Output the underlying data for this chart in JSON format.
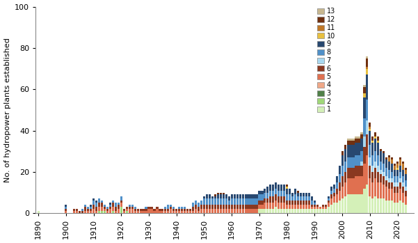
{
  "ylabel": "No. of hydropower plants established",
  "ylim": [
    0,
    100
  ],
  "yticks": [
    0,
    20,
    40,
    60,
    80,
    100
  ],
  "xlim": [
    1889,
    2026
  ],
  "xticks": [
    1890,
    1900,
    1910,
    1920,
    1930,
    1940,
    1950,
    1960,
    1970,
    1980,
    1990,
    2000,
    2010,
    2020
  ],
  "colors": {
    "1": "#d4f0b8",
    "2": "#a0d878",
    "3": "#508048",
    "4": "#f0a888",
    "5": "#e07050",
    "6": "#8a3820",
    "7": "#a8d8f0",
    "8": "#5090c8",
    "9": "#284870",
    "10": "#e8c040",
    "11": "#c07828",
    "12": "#703010",
    "13": "#c8b890"
  },
  "legend_order": [
    13,
    12,
    11,
    10,
    9,
    8,
    7,
    6,
    5,
    4,
    3,
    2,
    1
  ],
  "data": {
    "1890": {
      "1": 1
    },
    "1891": {},
    "1892": {},
    "1893": {},
    "1894": {},
    "1895": {},
    "1896": {},
    "1897": {},
    "1898": {},
    "1899": {},
    "1900": {
      "5": 1,
      "6": 1,
      "8": 1,
      "9": 1
    },
    "1901": {},
    "1902": {},
    "1903": {
      "5": 1,
      "6": 1
    },
    "1904": {
      "5": 1,
      "6": 1
    },
    "1905": {
      "6": 1
    },
    "1906": {
      "6": 1,
      "8": 1
    },
    "1907": {
      "5": 1,
      "6": 2,
      "8": 1
    },
    "1908": {
      "5": 1,
      "6": 1,
      "8": 1
    },
    "1909": {
      "5": 1,
      "6": 1,
      "8": 1,
      "9": 1
    },
    "1910": {
      "5": 2,
      "6": 2,
      "8": 2,
      "9": 1
    },
    "1911": {
      "5": 1,
      "6": 2,
      "8": 2,
      "9": 1
    },
    "1912": {
      "2": 1,
      "5": 2,
      "6": 2,
      "8": 2
    },
    "1913": {
      "2": 1,
      "5": 2,
      "6": 2,
      "8": 1
    },
    "1914": {
      "2": 1,
      "5": 1,
      "6": 1,
      "8": 1
    },
    "1915": {
      "5": 1,
      "6": 1,
      "8": 1
    },
    "1916": {
      "5": 2,
      "6": 1,
      "8": 1,
      "9": 1
    },
    "1917": {
      "2": 1,
      "5": 2,
      "6": 2,
      "8": 1
    },
    "1918": {
      "5": 1,
      "6": 2,
      "8": 2
    },
    "1919": {
      "5": 2,
      "6": 2,
      "8": 1
    },
    "1920": {
      "2": 3,
      "5": 2,
      "6": 1,
      "8": 2
    },
    "1921": {
      "5": 1,
      "6": 1
    },
    "1922": {
      "2": 1,
      "5": 1,
      "6": 1
    },
    "1923": {
      "5": 2,
      "6": 1,
      "8": 1
    },
    "1924": {
      "5": 2,
      "6": 1,
      "8": 1
    },
    "1925": {
      "5": 1,
      "6": 1,
      "8": 1
    },
    "1926": {
      "5": 1,
      "6": 1
    },
    "1927": {
      "5": 1,
      "6": 1
    },
    "1928": {
      "5": 1,
      "6": 1
    },
    "1929": {
      "5": 1,
      "6": 1,
      "8": 1
    },
    "1930": {
      "5": 2,
      "6": 1
    },
    "1931": {
      "5": 2,
      "6": 1
    },
    "1932": {
      "5": 1,
      "6": 1
    },
    "1933": {
      "5": 2,
      "6": 1
    },
    "1934": {
      "5": 1,
      "6": 1
    },
    "1935": {
      "5": 1,
      "6": 1
    },
    "1936": {
      "5": 1,
      "6": 1,
      "8": 1
    },
    "1937": {
      "5": 1,
      "6": 1,
      "8": 2
    },
    "1938": {
      "5": 2,
      "6": 1,
      "8": 1
    },
    "1939": {
      "5": 1,
      "6": 1,
      "8": 1
    },
    "1940": {
      "5": 1,
      "6": 1
    },
    "1941": {
      "5": 1,
      "6": 1,
      "8": 1
    },
    "1942": {
      "5": 1,
      "6": 1,
      "8": 1
    },
    "1943": {
      "5": 1,
      "6": 1,
      "8": 1
    },
    "1944": {
      "5": 1,
      "6": 1
    },
    "1945": {
      "5": 1,
      "6": 1
    },
    "1946": {
      "5": 1,
      "6": 2,
      "8": 2
    },
    "1947": {
      "5": 2,
      "6": 2,
      "8": 2
    },
    "1948": {
      "5": 1,
      "6": 2,
      "8": 2
    },
    "1949": {
      "5": 2,
      "6": 2,
      "8": 2
    },
    "1950": {
      "5": 2,
      "6": 2,
      "8": 3,
      "9": 1
    },
    "1951": {
      "5": 2,
      "6": 2,
      "8": 3,
      "9": 2
    },
    "1952": {
      "5": 2,
      "6": 2,
      "8": 3,
      "9": 2
    },
    "1953": {
      "5": 2,
      "6": 2,
      "8": 3,
      "9": 1
    },
    "1954": {
      "5": 2,
      "6": 2,
      "8": 3,
      "9": 1,
      "12": 1
    },
    "1955": {
      "5": 2,
      "6": 2,
      "8": 3,
      "9": 2,
      "12": 1
    },
    "1956": {
      "5": 2,
      "6": 2,
      "8": 3,
      "9": 2,
      "12": 1
    },
    "1957": {
      "5": 2,
      "6": 2,
      "8": 3,
      "9": 2,
      "12": 1
    },
    "1958": {
      "5": 2,
      "6": 2,
      "8": 3,
      "9": 2
    },
    "1959": {
      "5": 2,
      "6": 2,
      "8": 2,
      "9": 2
    },
    "1960": {
      "5": 2,
      "6": 2,
      "8": 3,
      "9": 2
    },
    "1961": {
      "5": 2,
      "6": 2,
      "8": 3,
      "9": 2
    },
    "1962": {
      "5": 2,
      "6": 2,
      "8": 3,
      "9": 2
    },
    "1963": {
      "5": 2,
      "6": 2,
      "8": 3,
      "9": 2
    },
    "1964": {
      "5": 2,
      "6": 2,
      "8": 3,
      "9": 2
    },
    "1965": {
      "5": 2,
      "6": 2,
      "8": 3,
      "9": 2
    },
    "1966": {
      "5": 2,
      "6": 2,
      "8": 3,
      "9": 2
    },
    "1967": {
      "5": 2,
      "6": 2,
      "8": 3,
      "9": 2
    },
    "1968": {
      "5": 2,
      "6": 2,
      "8": 3,
      "9": 2
    },
    "1969": {
      "5": 2,
      "6": 2,
      "8": 3,
      "9": 2
    },
    "1970": {
      "1": 2,
      "5": 2,
      "6": 2,
      "8": 3,
      "9": 2
    },
    "1971": {
      "1": 2,
      "5": 2,
      "6": 2,
      "8": 3,
      "9": 2
    },
    "1972": {
      "1": 2,
      "5": 3,
      "6": 2,
      "8": 3,
      "9": 2
    },
    "1973": {
      "1": 2,
      "5": 3,
      "6": 2,
      "8": 3,
      "9": 3
    },
    "1974": {
      "1": 2,
      "5": 3,
      "6": 3,
      "8": 3,
      "9": 3
    },
    "1975": {
      "1": 2,
      "5": 3,
      "6": 3,
      "8": 3,
      "9": 3
    },
    "1976": {
      "1": 3,
      "5": 3,
      "6": 3,
      "8": 3,
      "9": 3
    },
    "1977": {
      "1": 2,
      "5": 3,
      "6": 3,
      "8": 3,
      "9": 3
    },
    "1978": {
      "1": 2,
      "5": 3,
      "6": 3,
      "8": 3,
      "9": 3
    },
    "1979": {
      "1": 2,
      "5": 3,
      "6": 3,
      "8": 3,
      "9": 3
    },
    "1980": {
      "1": 2,
      "5": 2,
      "6": 2,
      "8": 3,
      "9": 3,
      "10": 1,
      "12": 1
    },
    "1981": {
      "1": 2,
      "5": 2,
      "6": 2,
      "8": 3,
      "9": 3
    },
    "1982": {
      "1": 2,
      "5": 2,
      "6": 2,
      "8": 2,
      "9": 2
    },
    "1983": {
      "1": 2,
      "5": 2,
      "6": 2,
      "8": 3,
      "9": 3
    },
    "1984": {
      "1": 2,
      "5": 2,
      "6": 2,
      "8": 2,
      "9": 2,
      "12": 1
    },
    "1985": {
      "1": 2,
      "5": 2,
      "6": 2,
      "8": 2,
      "9": 2
    },
    "1986": {
      "1": 2,
      "5": 2,
      "6": 2,
      "8": 2,
      "9": 2
    },
    "1987": {
      "1": 2,
      "5": 2,
      "6": 2,
      "8": 2,
      "9": 2
    },
    "1988": {
      "1": 2,
      "5": 2,
      "6": 2,
      "8": 2,
      "9": 2
    },
    "1989": {
      "1": 2,
      "5": 1,
      "6": 1,
      "8": 2,
      "9": 2
    },
    "1990": {
      "1": 2,
      "5": 1,
      "6": 1,
      "8": 1,
      "9": 1
    },
    "1991": {
      "1": 2,
      "5": 1,
      "6": 1
    },
    "1992": {
      "1": 2,
      "5": 1
    },
    "1993": {
      "1": 2,
      "5": 1,
      "6": 1
    },
    "1994": {
      "1": 2,
      "5": 1,
      "6": 1
    },
    "1995": {
      "1": 3,
      "5": 2,
      "6": 1,
      "8": 1,
      "9": 1
    },
    "1996": {
      "1": 4,
      "5": 3,
      "6": 2,
      "8": 2,
      "9": 2
    },
    "1997": {
      "1": 5,
      "5": 3,
      "6": 2,
      "8": 2,
      "9": 2
    },
    "1998": {
      "1": 5,
      "5": 4,
      "6": 3,
      "8": 3,
      "9": 3
    },
    "1999": {
      "1": 6,
      "5": 5,
      "6": 4,
      "8": 4,
      "9": 4
    },
    "2000": {
      "1": 7,
      "5": 6,
      "6": 5,
      "8": 5,
      "9": 5,
      "12": 2
    },
    "2001": {
      "1": 8,
      "5": 7,
      "6": 5,
      "8": 5,
      "9": 6,
      "12": 2
    },
    "2002": {
      "1": 9,
      "5": 8,
      "6": 5,
      "8": 5,
      "9": 6,
      "12": 2,
      "13": 1
    },
    "2003": {
      "1": 9,
      "5": 8,
      "6": 5,
      "8": 5,
      "9": 6,
      "12": 2,
      "13": 1
    },
    "2004": {
      "1": 9,
      "5": 8,
      "6": 5,
      "8": 5,
      "9": 6,
      "12": 2,
      "13": 1
    },
    "2005": {
      "1": 9,
      "5": 9,
      "6": 5,
      "8": 5,
      "9": 6,
      "12": 2,
      "13": 1
    },
    "2006": {
      "1": 9,
      "5": 9,
      "6": 5,
      "8": 5,
      "9": 6,
      "12": 2,
      "13": 1
    },
    "2007": {
      "1": 9,
      "5": 9,
      "6": 5,
      "8": 5,
      "9": 6,
      "12": 2,
      "13": 1,
      "7": 2
    },
    "2008": {
      "1": 12,
      "5": 12,
      "6": 8,
      "7": 5,
      "8": 9,
      "9": 10,
      "12": 3,
      "13": 1,
      "10": 2
    },
    "2009": {
      "1": 14,
      "5": 14,
      "6": 10,
      "7": 7,
      "8": 10,
      "9": 12,
      "12": 4,
      "13": 1,
      "10": 3,
      "11": 1
    },
    "2010": {
      "1": 8,
      "5": 9,
      "6": 6,
      "7": 4,
      "8": 6,
      "9": 7,
      "12": 2,
      "10": 1,
      "11": 1
    },
    "2011": {
      "1": 7,
      "5": 8,
      "6": 5,
      "7": 3,
      "8": 5,
      "9": 6,
      "12": 2,
      "10": 1
    },
    "2012": {
      "1": 8,
      "5": 9,
      "6": 5,
      "7": 3,
      "8": 5,
      "9": 6,
      "12": 2,
      "10": 1
    },
    "2013": {
      "1": 7,
      "5": 8,
      "6": 5,
      "7": 3,
      "8": 5,
      "9": 6,
      "12": 2,
      "10": 1
    },
    "2014": {
      "1": 7,
      "5": 8,
      "6": 4,
      "7": 2,
      "8": 4,
      "9": 5,
      "12": 1
    },
    "2015": {
      "1": 7,
      "5": 7,
      "6": 4,
      "7": 2,
      "8": 4,
      "9": 5,
      "12": 1
    },
    "2016": {
      "1": 6,
      "5": 7,
      "6": 3,
      "7": 2,
      "8": 4,
      "9": 4,
      "12": 1
    },
    "2017": {
      "1": 6,
      "5": 6,
      "6": 3,
      "7": 2,
      "8": 4,
      "9": 4,
      "12": 1,
      "11": 2
    },
    "2018": {
      "1": 6,
      "5": 6,
      "6": 3,
      "7": 2,
      "8": 3,
      "9": 4,
      "12": 1,
      "11": 2
    },
    "2019": {
      "1": 5,
      "5": 5,
      "6": 3,
      "7": 2,
      "8": 3,
      "9": 3,
      "12": 1,
      "11": 2
    },
    "2020": {
      "1": 5,
      "5": 5,
      "6": 3,
      "7": 2,
      "8": 3,
      "9": 3,
      "12": 1,
      "11": 2,
      "10": 1
    },
    "2021": {
      "1": 6,
      "5": 6,
      "6": 3,
      "7": 2,
      "8": 3,
      "9": 3,
      "12": 1,
      "11": 3
    },
    "2022": {
      "1": 5,
      "5": 5,
      "6": 3,
      "7": 2,
      "8": 3,
      "9": 3,
      "12": 1,
      "11": 3
    },
    "2023": {
      "1": 4,
      "5": 4,
      "6": 3,
      "7": 2,
      "8": 3,
      "9": 3,
      "12": 1,
      "11": 2
    }
  }
}
